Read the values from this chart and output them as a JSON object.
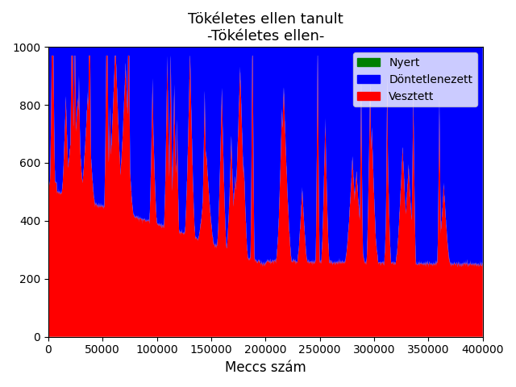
{
  "title_line1": "Tökéletes ellen tanult",
  "title_line2": "-Tökéletes ellen-",
  "xlabel": "Meccs szám",
  "legend_labels": [
    "Nyert",
    "Döntetlenezett",
    "Vesztett"
  ],
  "legend_colors": [
    "#008000",
    "#0000ff",
    "#ff0000"
  ],
  "ylim": [
    0,
    1000
  ],
  "xlim": [
    0,
    400000
  ],
  "n_points": 4000,
  "x_max": 400000,
  "figure_facecolor": "#ffffff",
  "spike_count": 35,
  "seed": 77
}
